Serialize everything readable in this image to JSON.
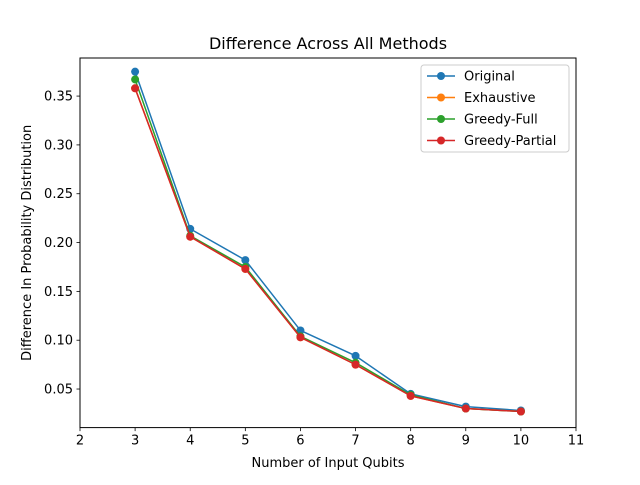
{
  "chart_data": {
    "type": "line",
    "title": "Difference Across All Methods",
    "xlabel": "Number of Input Qubits",
    "ylabel": "Difference In Probability Distribution",
    "xlim": [
      2,
      11
    ],
    "ylim": [
      0.0105,
      0.389
    ],
    "x_ticks": [
      2,
      3,
      4,
      5,
      6,
      7,
      8,
      9,
      10,
      11
    ],
    "y_ticks": [
      0.05,
      0.1,
      0.15,
      0.2,
      0.25,
      0.3,
      0.35
    ],
    "grid": false,
    "legend_position": "top-right",
    "x": [
      3,
      4,
      5,
      6,
      7,
      8,
      9,
      10
    ],
    "series": [
      {
        "name": "Original",
        "color": "#1f77b4",
        "marker": "circle",
        "values": [
          0.375,
          0.214,
          0.182,
          0.11,
          0.084,
          0.045,
          0.032,
          0.028
        ]
      },
      {
        "name": "Exhaustive",
        "color": "#ff7f0e",
        "marker": "circle",
        "values": [
          0.358,
          0.206,
          0.173,
          0.103,
          0.075,
          0.043,
          0.03,
          0.027
        ]
      },
      {
        "name": "Greedy-Full",
        "color": "#2ca02c",
        "marker": "circle",
        "values": [
          0.367,
          0.207,
          0.175,
          0.104,
          0.077,
          0.044,
          0.03,
          0.027
        ]
      },
      {
        "name": "Greedy-Partial",
        "color": "#d62728",
        "marker": "circle",
        "values": [
          0.358,
          0.206,
          0.173,
          0.103,
          0.075,
          0.043,
          0.03,
          0.027
        ]
      }
    ]
  }
}
